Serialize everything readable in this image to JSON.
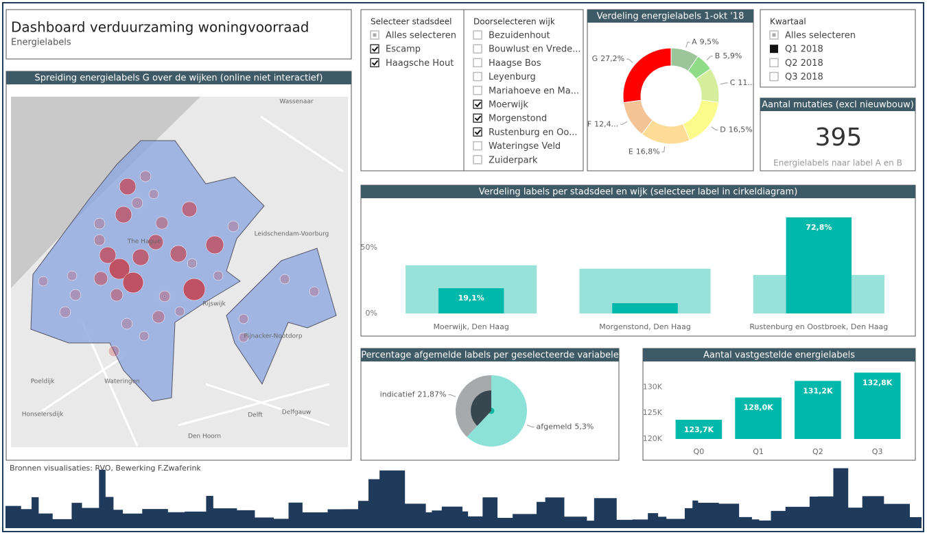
{
  "header": {
    "title": "Dashboard verduurzaming woningvoorraad",
    "subtitle": "Energielabels"
  },
  "slicers": [
    {
      "title": "Selecteer stadsdeel",
      "items": [
        {
          "label": "Alles selecteren",
          "state": "partial"
        },
        {
          "label": "Escamp",
          "state": "checked"
        },
        {
          "label": "Haagsche Hout",
          "state": "checked"
        }
      ]
    },
    {
      "title": "Doorselecteren wijk",
      "items": [
        {
          "label": "Bezuidenhout",
          "state": "unchecked"
        },
        {
          "label": "Bouwlust en Vrede...",
          "state": "unchecked"
        },
        {
          "label": "Haagse Bos",
          "state": "unchecked"
        },
        {
          "label": "Leyenburg",
          "state": "unchecked"
        },
        {
          "label": "Mariahoeve en Ma...",
          "state": "unchecked"
        },
        {
          "label": "Moerwijk",
          "state": "checked"
        },
        {
          "label": "Morgenstond",
          "state": "checked"
        },
        {
          "label": "Rustenburg en Oo...",
          "state": "checked"
        },
        {
          "label": "Wateringse Veld",
          "state": "unchecked"
        },
        {
          "label": "Zuiderpark",
          "state": "unchecked"
        }
      ]
    },
    {
      "title": "Kwartaal",
      "items": [
        {
          "label": "Alles selecteren",
          "state": "partial"
        },
        {
          "label": "Q1 2018",
          "state": "selected"
        },
        {
          "label": "Q2 2018",
          "state": "unchecked"
        },
        {
          "label": "Q3 2018",
          "state": "unchecked"
        }
      ]
    }
  ],
  "card": {
    "title": "Aantal mutaties (excl nieuwbouw)",
    "value": 395,
    "label": "Energielabels naar label A en B"
  },
  "map": {
    "title": "Spreiding energielabels G over de wijken (online niet interactief)",
    "places": [
      "Wassenaar",
      "Leidschendam-Voorburg",
      "The Hague",
      "Rijswijk",
      "Pijnacker-Nootdorp",
      "Poeldijk",
      "Wateringen",
      "Honselersdijk",
      "Delft",
      "Delfgauw",
      "Den Hoorn"
    ]
  },
  "footer": "Bronnen visualisaties: RVO, Bewerking F.Zwaferink",
  "chart_data": [
    {
      "type": "donut",
      "title": "Verdeling energielabels 1-okt '18",
      "categories": [
        "A",
        "B",
        "C",
        "D",
        "E",
        "F",
        "G"
      ],
      "values": [
        9.5,
        5.9,
        11.7,
        16.5,
        16.8,
        12.4,
        27.2
      ],
      "value_labels": [
        "9,5%",
        "5,9%",
        "11...",
        "16,5%",
        "16,8%",
        "12,4...",
        "27,2%"
      ],
      "colors": [
        "#9cc59a",
        "#8edc88",
        "#d4ee9b",
        "#fbfb8c",
        "#fcdc96",
        "#f4c396",
        "#ff0000"
      ]
    },
    {
      "type": "bar",
      "title": "Verdeling labels per stadsdeel en wijk (selecteer label in cirkeldiagram)",
      "categories": [
        "Moerwijk, Den Haag",
        "Morgenstond, Den Haag",
        "Rustenburg en Oostbroek, Den Haag"
      ],
      "series": [
        {
          "color": "#99e2d9",
          "values": [
            36.5,
            33.9,
            29.2
          ]
        },
        {
          "color": "#01b8aa",
          "values": [
            19.1,
            7.8,
            72.8
          ],
          "value_labels": [
            "19,1%",
            null,
            "72,8%"
          ]
        }
      ],
      "ylim": [
        0,
        80
      ],
      "yticks": [
        {
          "value": 0,
          "label": "0%"
        },
        {
          "value": 50,
          "label": "50%"
        }
      ]
    },
    {
      "type": "pie",
      "title": "Percentage afgemelde labels per geselecteerde variabele",
      "categories": [
        "afgemeld",
        "indicatief"
      ],
      "series": [
        {
          "colors": [
            "#8de2d8",
            "#a6aaac"
          ],
          "values": [
            62,
            38
          ]
        },
        {
          "colors": [
            "#13b5a3",
            "#37464f"
          ],
          "values": [
            5.3,
            21.87
          ],
          "value_labels": [
            "5,3%",
            "21,87%"
          ]
        }
      ]
    },
    {
      "type": "bar",
      "title": "Aantal vastgestelde energielabels",
      "categories": [
        "Q0",
        "Q1",
        "Q2",
        "Q3"
      ],
      "series": [
        {
          "color": "#01b8aa",
          "values": [
            123700,
            128000,
            131200,
            132800
          ],
          "value_labels": [
            "123,7K",
            "128,0K",
            "131,2K",
            "132,8K"
          ]
        }
      ],
      "ylim": [
        120000,
        133500
      ],
      "yticks": [
        {
          "value": 120000,
          "label": "120K"
        },
        {
          "value": 125000,
          "label": "125K"
        },
        {
          "value": 130000,
          "label": "130K"
        }
      ]
    }
  ]
}
